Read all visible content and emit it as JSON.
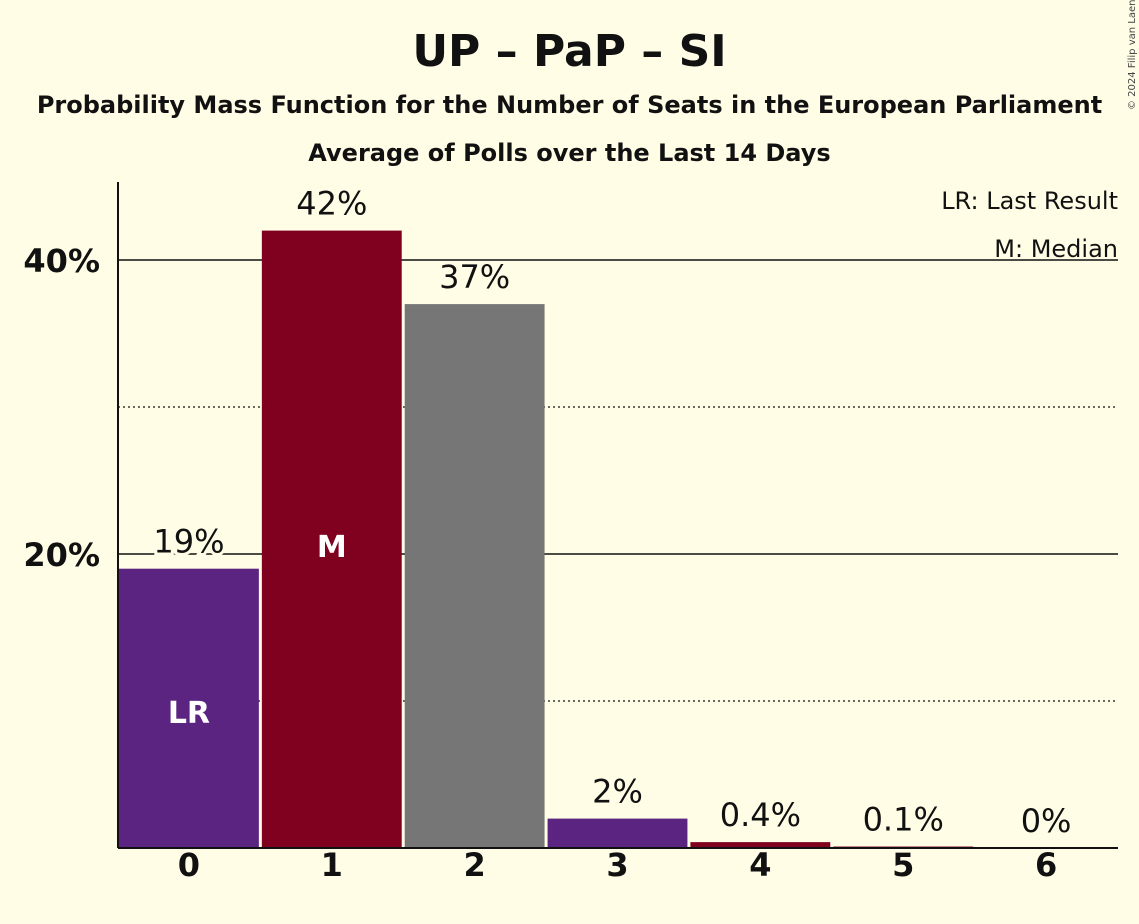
{
  "chart_data": {
    "type": "bar",
    "title": "UP – PaP – SI",
    "subtitle": "Probability Mass Function for the Number of Seats in the European Parliament",
    "subtitle2": "Average of Polls over the Last 14 Days",
    "categories": [
      "0",
      "1",
      "2",
      "3",
      "4",
      "5",
      "6"
    ],
    "values": [
      19,
      42,
      37,
      2,
      0.4,
      0.1,
      0
    ],
    "value_labels": [
      "19%",
      "42%",
      "37%",
      "2%",
      "0.4%",
      "0.1%",
      "0%"
    ],
    "bar_colors": [
      "#5B2480",
      "#800020",
      "#767676",
      "#5B2480",
      "#800020",
      "#800020",
      "#800020"
    ],
    "bar_inner_labels": [
      "LR",
      "M",
      "",
      "",
      "",
      "",
      ""
    ],
    "yticks": [
      {
        "value": 20,
        "label": "20%"
      },
      {
        "value": 40,
        "label": "40%"
      }
    ],
    "ylim": [
      0,
      45
    ],
    "grid": true,
    "legend": {
      "position": "top-right",
      "entries": [
        "LR: Last Result",
        "M: Median"
      ]
    }
  },
  "copyright": "© 2024 Filip van Laenen"
}
